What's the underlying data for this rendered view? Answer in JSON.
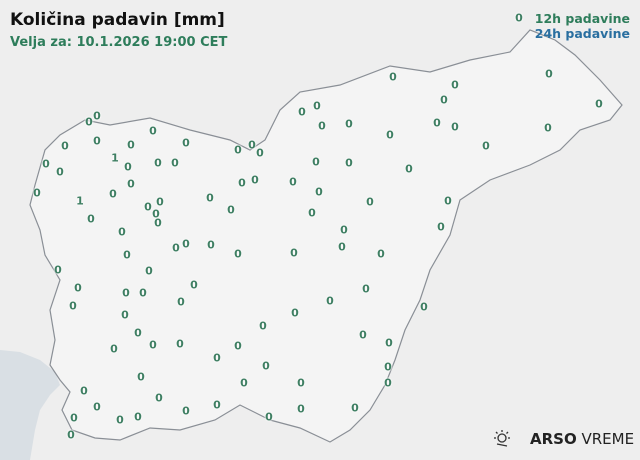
{
  "header": {
    "title": "Količina padavin [mm]",
    "valid_for": "Velja za: 10.1.2026 19:00 CET"
  },
  "legend": {
    "items": [
      {
        "label": "12h padavine",
        "color": "#2e7d5b"
      },
      {
        "label": "24h padavine",
        "color": "#2a6fa0"
      }
    ]
  },
  "colors": {
    "land": "#eeeeee",
    "sea": "#d9dfe4",
    "border": "#8a8f96",
    "value_text": "#3f7f63"
  },
  "stations": {
    "values_12h": [
      "0",
      "0",
      "0",
      "0",
      "0",
      "0",
      "0",
      "0",
      "0",
      "0",
      "0",
      "0",
      "0",
      "0",
      "0",
      "0",
      "0",
      "0",
      "0",
      "0",
      "0",
      "0",
      "0",
      "0",
      "0",
      "1",
      "0",
      "0",
      "0",
      "0",
      "0",
      "0",
      "0",
      "0",
      "0",
      "0",
      "0",
      "0",
      "0",
      "0",
      "0",
      "0",
      "1",
      "0",
      "0",
      "0",
      "0",
      "0",
      "0",
      "0",
      "0",
      "0",
      "0",
      "0",
      "0",
      "0",
      "0",
      "0",
      "0",
      "0",
      "0",
      "0",
      "0",
      "0",
      "0",
      "0",
      "0",
      "0",
      "0",
      "0",
      "0",
      "0",
      "0",
      "0",
      "0",
      "0",
      "0",
      "0",
      "0",
      "0",
      "0",
      "0",
      "0",
      "0",
      "0",
      "0",
      "0",
      "0",
      "0",
      "0",
      "0",
      "0",
      "0",
      "0",
      "0",
      "0",
      "0",
      "0",
      "0",
      "0",
      "0",
      "0",
      "0"
    ]
  },
  "branding": {
    "logo_icon": "sun-cloud-icon",
    "logo_bold": "ARSO",
    "logo_rest": "VREME"
  }
}
